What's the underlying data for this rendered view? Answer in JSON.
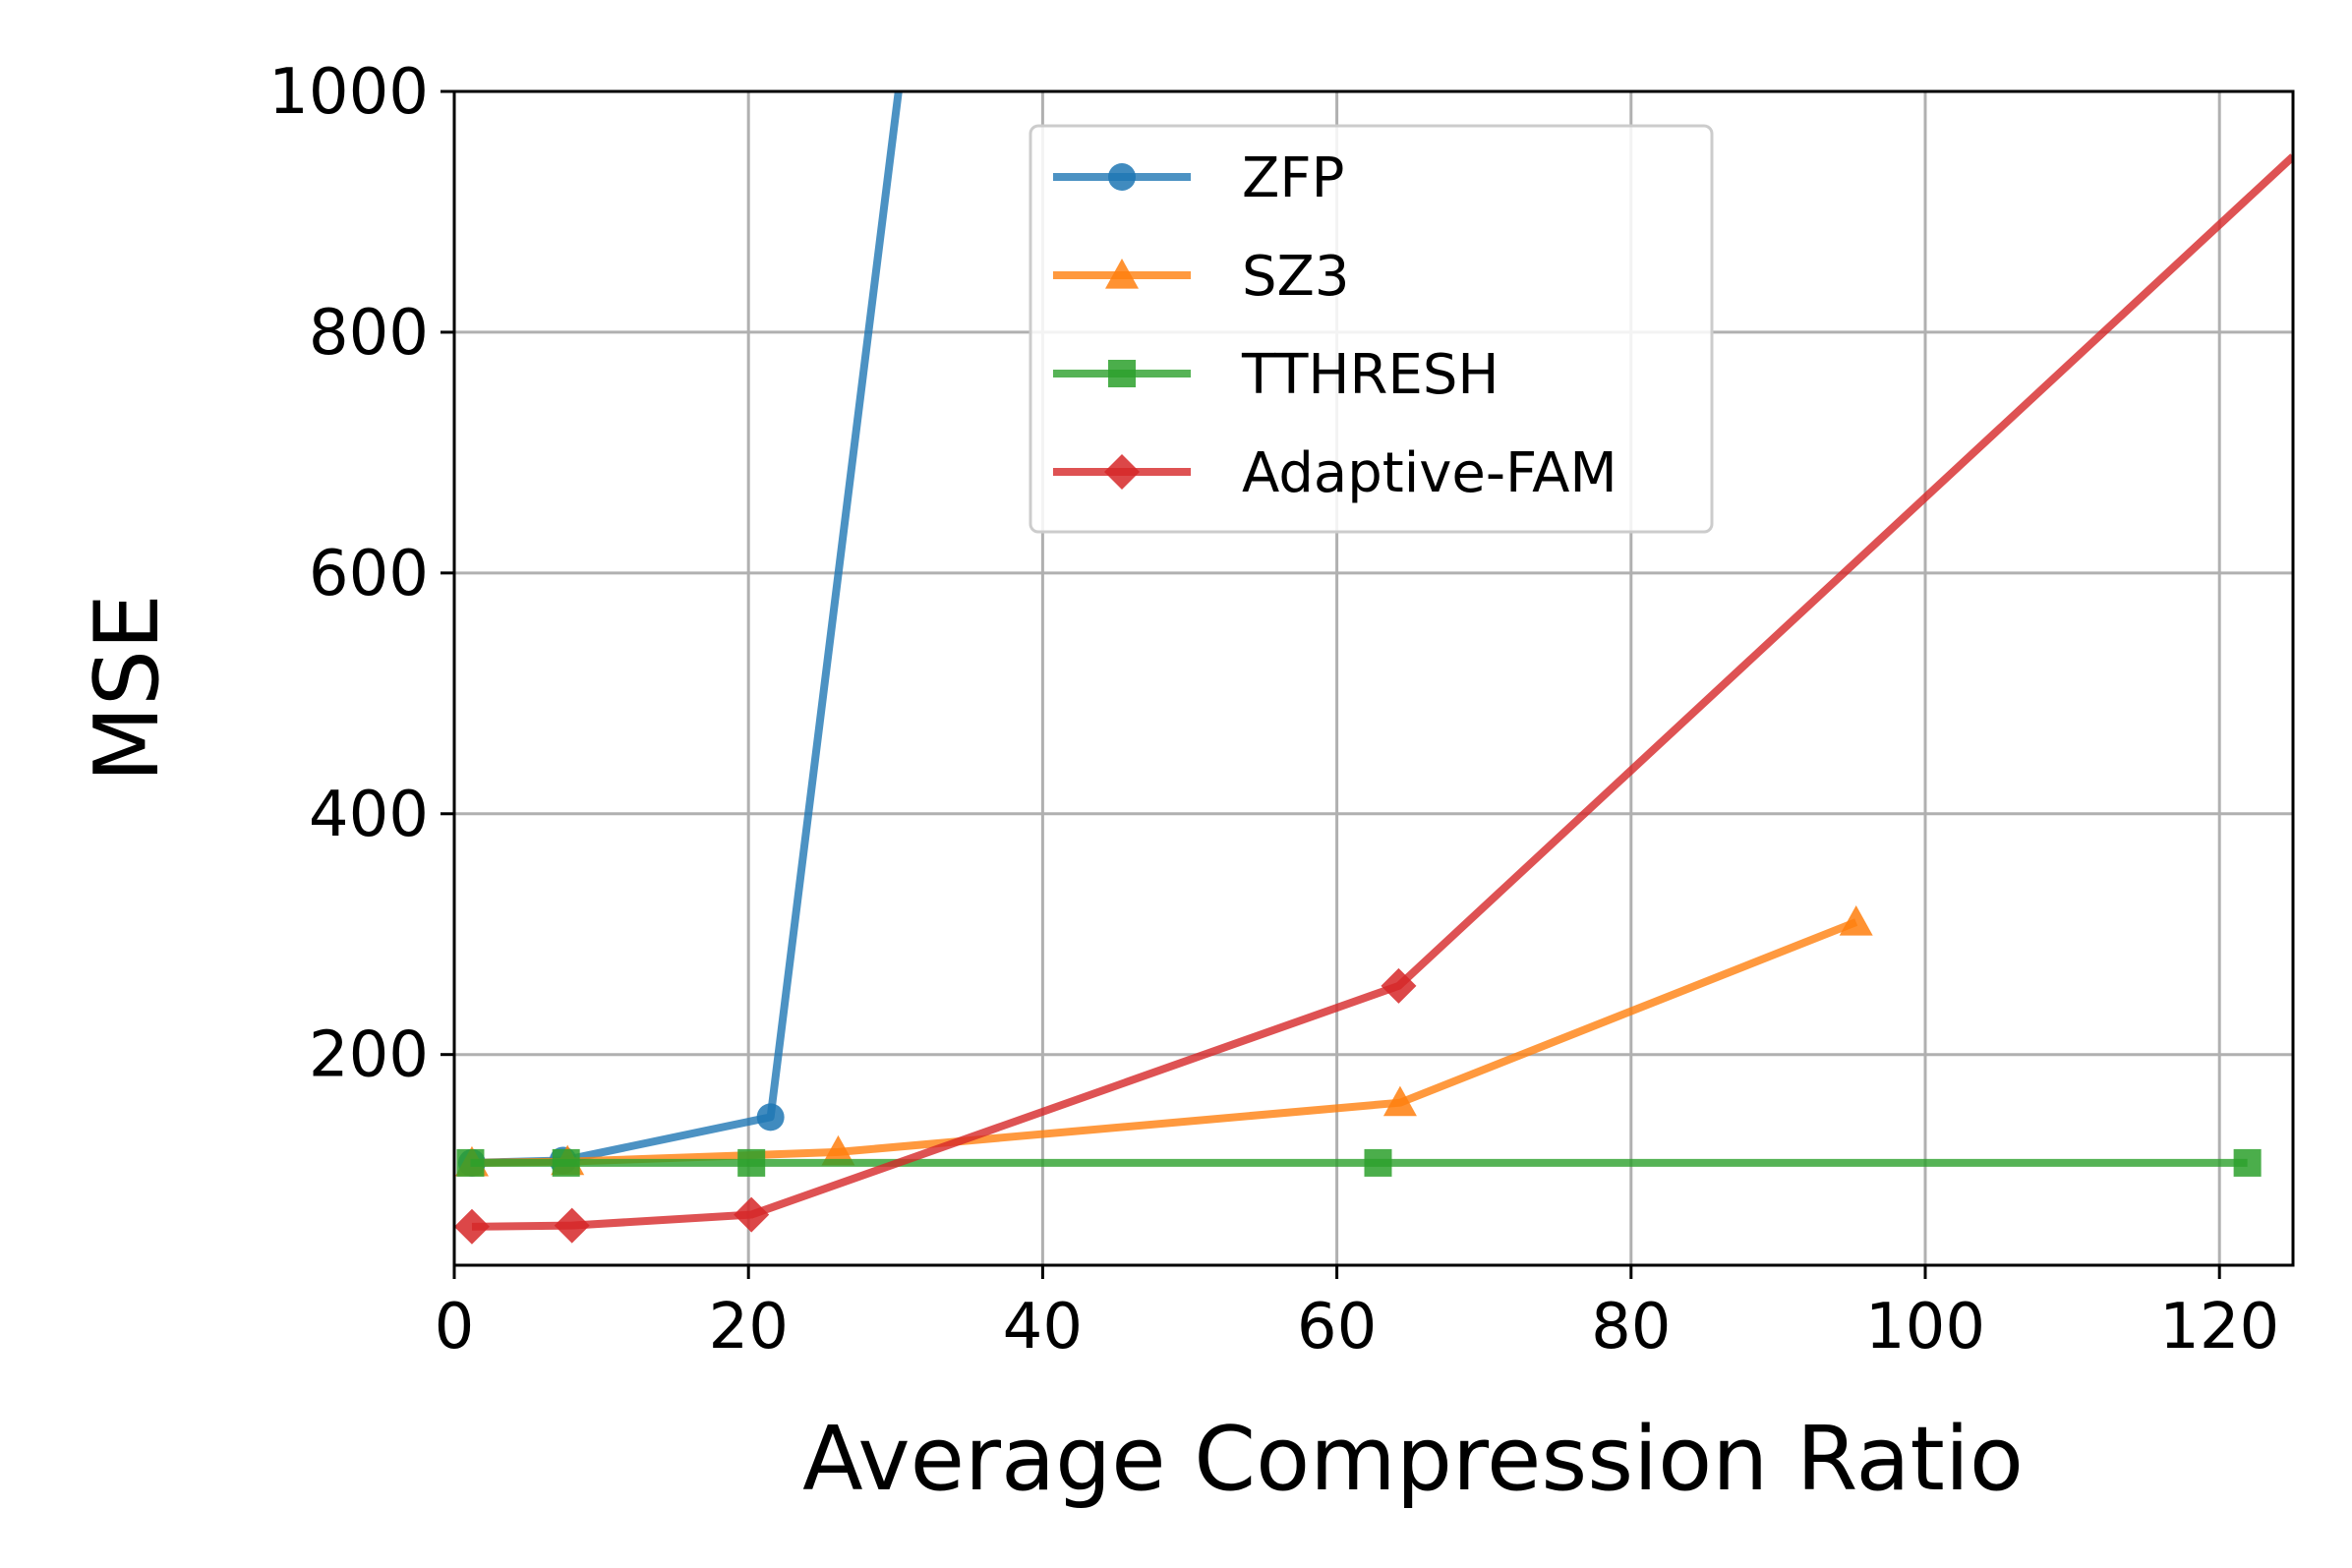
{
  "chart_data": {
    "type": "line",
    "title": "",
    "xlabel": "Average Compression Ratio",
    "ylabel": "MSE",
    "xlim": [
      0,
      125
    ],
    "ylim": [
      25,
      1000
    ],
    "xticks": [
      0,
      20,
      40,
      60,
      80,
      100,
      120
    ],
    "yticks": [
      200,
      400,
      600,
      800,
      1000
    ],
    "grid": true,
    "legend_position": "upper-center",
    "series": [
      {
        "name": "ZFP",
        "color": "#1f77b4",
        "marker": "circle",
        "x": [
          1.2,
          7.4,
          21.5,
          30.2
        ],
        "y": [
          110,
          112,
          148,
          1000
        ]
      },
      {
        "name": "SZ3",
        "color": "#ff7f0e",
        "marker": "triangle",
        "x": [
          1.2,
          7.7,
          26.1,
          64.3,
          95.3
        ],
        "y": [
          110,
          111,
          119,
          160,
          310
        ]
      },
      {
        "name": "TTHRESH",
        "color": "#2ca02c",
        "marker": "square",
        "x": [
          1.1,
          7.6,
          20.2,
          62.8,
          121.9
        ],
        "y": [
          110,
          110,
          110,
          110,
          110
        ]
      },
      {
        "name": "Adaptive-FAM",
        "color": "#d62728",
        "marker": "diamond",
        "x": [
          1.2,
          8.0,
          20.2,
          64.2,
          125
        ],
        "y": [
          57,
          58,
          67,
          257,
          946
        ]
      }
    ]
  }
}
